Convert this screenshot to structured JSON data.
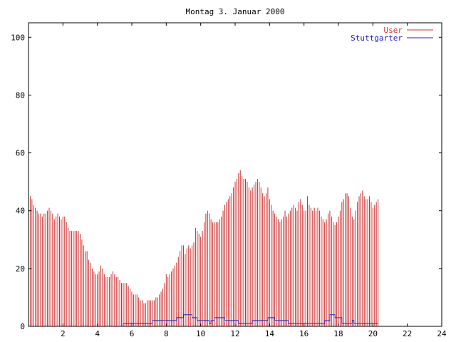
{
  "chart_data": {
    "type": "bar",
    "title": "Montag 3. Januar 2000",
    "xlim": [
      0,
      24
    ],
    "ylim": [
      0,
      105
    ],
    "x_ticks": [
      2,
      4,
      6,
      8,
      10,
      12,
      14,
      16,
      18,
      20,
      22,
      24
    ],
    "x_tick_labels": [
      "2",
      "4",
      "6",
      "8",
      "10",
      "12",
      "14",
      "16",
      "18",
      "20",
      "22",
      "24"
    ],
    "y_ticks": [
      0,
      20,
      40,
      60,
      80,
      100
    ],
    "y_tick_labels": [
      "0",
      "20",
      "40",
      "60",
      "80",
      "100"
    ],
    "grid": false,
    "legend_position": "top-right",
    "series": [
      {
        "name": "User",
        "color": "#d03030",
        "style": "impulses",
        "points": [
          [
            0.0,
            44
          ],
          [
            0.1,
            45
          ],
          [
            0.2,
            44
          ],
          [
            0.3,
            42
          ],
          [
            0.4,
            41
          ],
          [
            0.5,
            40
          ],
          [
            0.6,
            39
          ],
          [
            0.7,
            39
          ],
          [
            0.8,
            38
          ],
          [
            0.9,
            39
          ],
          [
            1.0,
            39
          ],
          [
            1.1,
            40
          ],
          [
            1.2,
            41
          ],
          [
            1.3,
            40
          ],
          [
            1.4,
            39
          ],
          [
            1.5,
            37
          ],
          [
            1.6,
            38
          ],
          [
            1.7,
            39
          ],
          [
            1.8,
            38
          ],
          [
            1.9,
            37
          ],
          [
            2.0,
            38
          ],
          [
            2.1,
            38
          ],
          [
            2.2,
            36
          ],
          [
            2.3,
            34
          ],
          [
            2.4,
            33
          ],
          [
            2.5,
            33
          ],
          [
            2.6,
            33
          ],
          [
            2.7,
            33
          ],
          [
            2.8,
            33
          ],
          [
            2.9,
            33
          ],
          [
            3.0,
            32
          ],
          [
            3.1,
            30
          ],
          [
            3.2,
            28
          ],
          [
            3.3,
            26
          ],
          [
            3.4,
            26
          ],
          [
            3.5,
            23
          ],
          [
            3.6,
            22
          ],
          [
            3.7,
            20
          ],
          [
            3.8,
            19
          ],
          [
            3.9,
            18
          ],
          [
            4.0,
            18
          ],
          [
            4.1,
            19
          ],
          [
            4.2,
            21
          ],
          [
            4.3,
            20
          ],
          [
            4.4,
            18
          ],
          [
            4.5,
            17
          ],
          [
            4.6,
            17
          ],
          [
            4.7,
            17
          ],
          [
            4.8,
            18
          ],
          [
            4.9,
            19
          ],
          [
            5.0,
            18
          ],
          [
            5.1,
            17
          ],
          [
            5.2,
            17
          ],
          [
            5.3,
            16
          ],
          [
            5.4,
            15
          ],
          [
            5.5,
            15
          ],
          [
            5.6,
            15
          ],
          [
            5.7,
            15
          ],
          [
            5.8,
            14
          ],
          [
            5.9,
            13
          ],
          [
            6.0,
            12
          ],
          [
            6.1,
            11
          ],
          [
            6.2,
            11
          ],
          [
            6.3,
            11
          ],
          [
            6.4,
            10
          ],
          [
            6.5,
            9
          ],
          [
            6.6,
            9
          ],
          [
            6.7,
            8
          ],
          [
            6.8,
            8
          ],
          [
            6.9,
            9
          ],
          [
            7.0,
            9
          ],
          [
            7.1,
            9
          ],
          [
            7.2,
            9
          ],
          [
            7.3,
            9
          ],
          [
            7.4,
            10
          ],
          [
            7.5,
            10
          ],
          [
            7.6,
            11
          ],
          [
            7.7,
            12
          ],
          [
            7.8,
            13
          ],
          [
            7.9,
            15
          ],
          [
            8.0,
            18
          ],
          [
            8.1,
            17
          ],
          [
            8.2,
            18
          ],
          [
            8.3,
            19
          ],
          [
            8.4,
            20
          ],
          [
            8.5,
            21
          ],
          [
            8.6,
            22
          ],
          [
            8.7,
            24
          ],
          [
            8.8,
            26
          ],
          [
            8.9,
            28
          ],
          [
            9.0,
            28
          ],
          [
            9.1,
            25
          ],
          [
            9.2,
            27
          ],
          [
            9.3,
            28
          ],
          [
            9.4,
            27
          ],
          [
            9.5,
            28
          ],
          [
            9.6,
            29
          ],
          [
            9.7,
            34
          ],
          [
            9.8,
            33
          ],
          [
            9.9,
            32
          ],
          [
            10.0,
            31
          ],
          [
            10.1,
            33
          ],
          [
            10.2,
            36
          ],
          [
            10.3,
            39
          ],
          [
            10.4,
            40
          ],
          [
            10.5,
            39
          ],
          [
            10.6,
            37
          ],
          [
            10.7,
            36
          ],
          [
            10.8,
            36
          ],
          [
            10.9,
            36
          ],
          [
            11.0,
            36
          ],
          [
            11.1,
            37
          ],
          [
            11.2,
            38
          ],
          [
            11.3,
            40
          ],
          [
            11.4,
            42
          ],
          [
            11.5,
            43
          ],
          [
            11.6,
            44
          ],
          [
            11.7,
            45
          ],
          [
            11.8,
            46
          ],
          [
            11.9,
            48
          ],
          [
            12.0,
            50
          ],
          [
            12.1,
            51
          ],
          [
            12.2,
            53
          ],
          [
            12.3,
            54
          ],
          [
            12.4,
            52
          ],
          [
            12.5,
            51
          ],
          [
            12.6,
            51
          ],
          [
            12.7,
            50
          ],
          [
            12.8,
            48
          ],
          [
            12.9,
            47
          ],
          [
            13.0,
            48
          ],
          [
            13.1,
            49
          ],
          [
            13.2,
            50
          ],
          [
            13.3,
            51
          ],
          [
            13.4,
            50
          ],
          [
            13.5,
            48
          ],
          [
            13.6,
            46
          ],
          [
            13.7,
            45
          ],
          [
            13.8,
            46
          ],
          [
            13.9,
            48
          ],
          [
            14.0,
            44
          ],
          [
            14.1,
            42
          ],
          [
            14.2,
            40
          ],
          [
            14.3,
            39
          ],
          [
            14.4,
            38
          ],
          [
            14.5,
            37
          ],
          [
            14.6,
            36
          ],
          [
            14.7,
            37
          ],
          [
            14.8,
            38
          ],
          [
            14.9,
            40
          ],
          [
            15.0,
            38
          ],
          [
            15.1,
            39
          ],
          [
            15.2,
            40
          ],
          [
            15.3,
            41
          ],
          [
            15.4,
            42
          ],
          [
            15.5,
            41
          ],
          [
            15.6,
            40
          ],
          [
            15.7,
            43
          ],
          [
            15.8,
            44
          ],
          [
            15.9,
            42
          ],
          [
            16.0,
            40
          ],
          [
            16.1,
            40
          ],
          [
            16.2,
            45
          ],
          [
            16.3,
            42
          ],
          [
            16.4,
            41
          ],
          [
            16.5,
            40
          ],
          [
            16.6,
            41
          ],
          [
            16.7,
            40
          ],
          [
            16.8,
            41
          ],
          [
            16.9,
            40
          ],
          [
            17.0,
            38
          ],
          [
            17.1,
            37
          ],
          [
            17.2,
            36
          ],
          [
            17.3,
            37
          ],
          [
            17.4,
            39
          ],
          [
            17.5,
            40
          ],
          [
            17.6,
            38
          ],
          [
            17.7,
            36
          ],
          [
            17.8,
            35
          ],
          [
            17.9,
            36
          ],
          [
            18.0,
            38
          ],
          [
            18.1,
            40
          ],
          [
            18.2,
            43
          ],
          [
            18.3,
            44
          ],
          [
            18.4,
            46
          ],
          [
            18.5,
            46
          ],
          [
            18.6,
            45
          ],
          [
            18.7,
            41
          ],
          [
            18.8,
            38
          ],
          [
            18.9,
            37
          ],
          [
            19.0,
            40
          ],
          [
            19.1,
            43
          ],
          [
            19.2,
            45
          ],
          [
            19.3,
            46
          ],
          [
            19.4,
            47
          ],
          [
            19.5,
            45
          ],
          [
            19.6,
            44
          ],
          [
            19.7,
            44
          ],
          [
            19.8,
            45
          ],
          [
            19.9,
            43
          ],
          [
            20.0,
            41
          ],
          [
            20.1,
            42
          ],
          [
            20.2,
            43
          ],
          [
            20.3,
            44
          ]
        ]
      },
      {
        "name": "Stuttgarter",
        "color": "#2020c0",
        "style": "steps",
        "points": [
          [
            0.0,
            0
          ],
          [
            5.4,
            0
          ],
          [
            5.5,
            1
          ],
          [
            7.1,
            1
          ],
          [
            7.2,
            2
          ],
          [
            8.5,
            2
          ],
          [
            8.6,
            3
          ],
          [
            8.9,
            3
          ],
          [
            9.0,
            4
          ],
          [
            9.4,
            4
          ],
          [
            9.5,
            3
          ],
          [
            9.7,
            3
          ],
          [
            9.8,
            2
          ],
          [
            10.4,
            2
          ],
          [
            10.5,
            1
          ],
          [
            10.6,
            2
          ],
          [
            10.8,
            3
          ],
          [
            11.3,
            3
          ],
          [
            11.4,
            2
          ],
          [
            12.1,
            2
          ],
          [
            12.2,
            1
          ],
          [
            12.9,
            1
          ],
          [
            13.0,
            2
          ],
          [
            13.8,
            2
          ],
          [
            13.9,
            3
          ],
          [
            14.2,
            3
          ],
          [
            14.3,
            2
          ],
          [
            15.0,
            2
          ],
          [
            15.1,
            1
          ],
          [
            17.1,
            1
          ],
          [
            17.2,
            2
          ],
          [
            17.4,
            2
          ],
          [
            17.5,
            4
          ],
          [
            17.7,
            4
          ],
          [
            17.8,
            3
          ],
          [
            18.1,
            3
          ],
          [
            18.2,
            1
          ],
          [
            18.7,
            1
          ],
          [
            18.8,
            2
          ],
          [
            18.9,
            1
          ],
          [
            20.3,
            1
          ]
        ]
      }
    ]
  }
}
